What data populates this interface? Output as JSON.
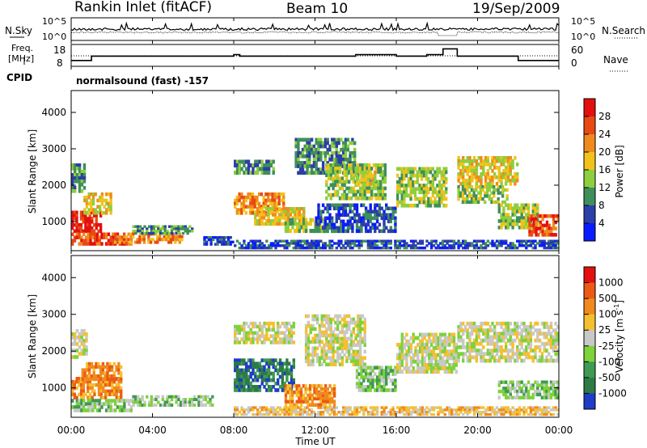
{
  "header": {
    "station": "Rankin Inlet (fitACF)",
    "beam": "Beam 10",
    "date": "19/Sep/2009"
  },
  "noise_panel": {
    "left_label": "N.Sky",
    "right_label": "N.Search",
    "yticks": [
      "10^5",
      "10^0"
    ],
    "line_colors": {
      "sky": "#000000",
      "search": "#000000"
    }
  },
  "freq_panel": {
    "left_label_1": "Freq.",
    "left_label_2": "[MHz]",
    "cpid_label": "CPID",
    "right_label": "Nave",
    "left_ticks": [
      "18",
      "8"
    ],
    "right_ticks": [
      "60",
      "0"
    ],
    "cpid_text": "normalsound (fast) -157"
  },
  "chart_data": [
    {
      "type": "heatmap",
      "name": "power",
      "ylabel": "Slant Range [km]",
      "xlabel": "",
      "xlim": [
        0,
        24
      ],
      "ylim": [
        200,
        4600
      ],
      "yticks": [
        "1000",
        "2000",
        "3000",
        "4000"
      ],
      "colorbar": {
        "label": "Power [dB]",
        "ticks": [
          "4",
          "8",
          "12",
          "16",
          "20",
          "24",
          "28"
        ],
        "colors": [
          "#0a1cff",
          "#2d3ea8",
          "#3f8f5a",
          "#8fce3e",
          "#f2c21a",
          "#f08a1e",
          "#e84a14",
          "#e41010"
        ]
      },
      "regions": [
        {
          "t": [
            0.0,
            0.7
          ],
          "r": [
            1800,
            2600
          ],
          "level": 2
        },
        {
          "t": [
            0.0,
            1.5
          ],
          "r": [
            700,
            1300
          ],
          "level": 7
        },
        {
          "t": [
            0.6,
            2.0
          ],
          "r": [
            1200,
            1800
          ],
          "level": 4
        },
        {
          "t": [
            0.0,
            3.0
          ],
          "r": [
            350,
            700
          ],
          "level": 6
        },
        {
          "t": [
            2.0,
            5.5
          ],
          "r": [
            400,
            700
          ],
          "level": 5
        },
        {
          "t": [
            3.0,
            6.0
          ],
          "r": [
            650,
            900
          ],
          "level": 2
        },
        {
          "t": [
            6.5,
            8.0
          ],
          "r": [
            350,
            600
          ],
          "level": 1
        },
        {
          "t": [
            8.0,
            10.5
          ],
          "r": [
            1200,
            1800
          ],
          "level": 5
        },
        {
          "t": [
            8.0,
            10.0
          ],
          "r": [
            2300,
            2700
          ],
          "level": 2
        },
        {
          "t": [
            9.0,
            11.5
          ],
          "r": [
            900,
            1400
          ],
          "level": 4
        },
        {
          "t": [
            10.5,
            12.5
          ],
          "r": [
            700,
            1100
          ],
          "level": 3
        },
        {
          "t": [
            11.0,
            14.0
          ],
          "r": [
            2300,
            3300
          ],
          "level": 2
        },
        {
          "t": [
            12.5,
            15.5
          ],
          "r": [
            1600,
            2600
          ],
          "level": 3
        },
        {
          "t": [
            12.0,
            16.0
          ],
          "r": [
            700,
            1500
          ],
          "level": 1
        },
        {
          "t": [
            14.0,
            15.0
          ],
          "r": [
            2000,
            2400
          ],
          "level": 4
        },
        {
          "t": [
            16.0,
            18.5
          ],
          "r": [
            1400,
            2500
          ],
          "level": 3
        },
        {
          "t": [
            19.0,
            22.0
          ],
          "r": [
            2000,
            2800
          ],
          "level": 4
        },
        {
          "t": [
            19.0,
            21.5
          ],
          "r": [
            1500,
            2000
          ],
          "level": 3
        },
        {
          "t": [
            21.0,
            23.0
          ],
          "r": [
            800,
            1500
          ],
          "level": 3
        },
        {
          "t": [
            22.5,
            24.0
          ],
          "r": [
            600,
            1200
          ],
          "level": 6
        },
        {
          "t": [
            8.0,
            24.0
          ],
          "r": [
            250,
            500
          ],
          "level": 1
        }
      ]
    },
    {
      "type": "heatmap",
      "name": "velocity",
      "ylabel": "Slant Range [km]",
      "xlabel": "Time UT",
      "xlim": [
        0,
        24
      ],
      "ylim": [
        200,
        4600
      ],
      "yticks": [
        "1000",
        "2000",
        "3000",
        "4000"
      ],
      "xticks": [
        "00:00",
        "04:00",
        "08:00",
        "12:00",
        "16:00",
        "20:00",
        "00:00"
      ],
      "colorbar": {
        "label": "Velocity [m s",
        "label_exp": "-1",
        "label_tail": "]",
        "ticks": [
          "1000",
          "500",
          "100",
          "25",
          "-25",
          "-100",
          "-500",
          "-1000"
        ],
        "colors": [
          "#1e3cc8",
          "#2e7a46",
          "#3f9a52",
          "#7ed23a",
          "#c8c8c8",
          "#f5c030",
          "#f08a1e",
          "#ec5a14",
          "#e41010"
        ]
      },
      "regions": [
        {
          "t": [
            0.0,
            0.8
          ],
          "r": [
            1800,
            2600
          ],
          "level": 4
        },
        {
          "t": [
            0.0,
            2.5
          ],
          "r": [
            700,
            1300
          ],
          "level": 6
        },
        {
          "t": [
            0.5,
            2.5
          ],
          "r": [
            1200,
            1700
          ],
          "level": 6
        },
        {
          "t": [
            0.0,
            3.0
          ],
          "r": [
            350,
            700
          ],
          "level": 3
        },
        {
          "t": [
            3.0,
            7.0
          ],
          "r": [
            500,
            800
          ],
          "level": 3
        },
        {
          "t": [
            8.0,
            11.0
          ],
          "r": [
            900,
            1800
          ],
          "level": 1
        },
        {
          "t": [
            8.0,
            11.0
          ],
          "r": [
            2200,
            2800
          ],
          "level": 4
        },
        {
          "t": [
            10.5,
            13.0
          ],
          "r": [
            500,
            1100
          ],
          "level": 6
        },
        {
          "t": [
            11.5,
            14.5
          ],
          "r": [
            1600,
            3000
          ],
          "level": 4
        },
        {
          "t": [
            14.0,
            16.0
          ],
          "r": [
            900,
            1600
          ],
          "level": 3
        },
        {
          "t": [
            16.0,
            19.0
          ],
          "r": [
            1400,
            2500
          ],
          "level": 4
        },
        {
          "t": [
            19.0,
            24.0
          ],
          "r": [
            1700,
            2800
          ],
          "level": 4
        },
        {
          "t": [
            21.0,
            24.0
          ],
          "r": [
            700,
            1200
          ],
          "level": 3
        },
        {
          "t": [
            12.0,
            13.0
          ],
          "r": [
            600,
            900
          ],
          "level": 6
        },
        {
          "t": [
            8.0,
            24.0
          ],
          "r": [
            250,
            500
          ],
          "level": 5
        }
      ]
    }
  ]
}
